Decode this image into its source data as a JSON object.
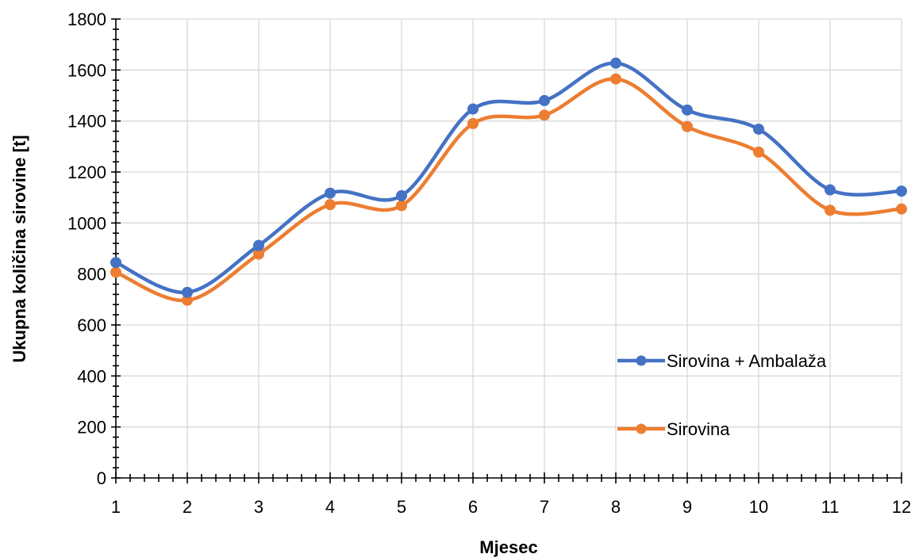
{
  "chart_data": {
    "type": "line",
    "smooth": true,
    "x": [
      1,
      2,
      3,
      4,
      5,
      6,
      7,
      8,
      9,
      10,
      11,
      12
    ],
    "xlabel": "Mjesec",
    "ylabel": "Ukupna količina sirovine [t]",
    "xlim": [
      1,
      12
    ],
    "ylim": [
      0,
      1800
    ],
    "y_ticks": [
      0,
      200,
      400,
      600,
      800,
      1000,
      1200,
      1400,
      1600,
      1800
    ],
    "x_ticks": [
      1,
      2,
      3,
      4,
      5,
      6,
      7,
      8,
      9,
      10,
      11,
      12
    ],
    "grid": true,
    "legend_position": "right",
    "series": [
      {
        "name": "Sirovina + Ambalaža",
        "color": "#4472C4",
        "values": [
          845,
          728,
          912,
          1117,
          1107,
          1447,
          1480,
          1627,
          1443,
          1368,
          1130,
          1125
        ]
      },
      {
        "name": "Sirovina",
        "color": "#ED7D31",
        "values": [
          807,
          697,
          878,
          1072,
          1068,
          1390,
          1423,
          1565,
          1378,
          1278,
          1050,
          1055
        ]
      }
    ]
  }
}
